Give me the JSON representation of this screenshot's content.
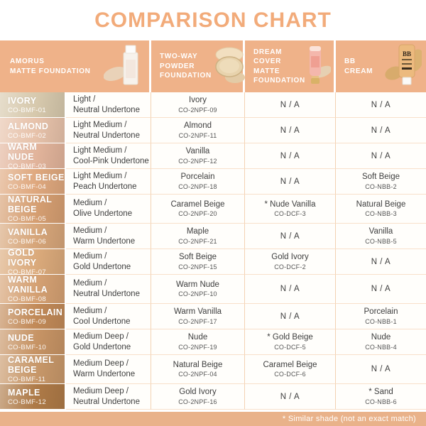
{
  "title": "COMPARISON CHART",
  "na_label": "N / A",
  "footer_note": "* Similar shade (not an exact match)",
  "colors": {
    "accent": "#f2ab7a",
    "header_bg": "#efb289",
    "footer_bg": "#e9b28a",
    "grid_line": "#f3d2b2",
    "cell_bg": "#fffefb"
  },
  "header": {
    "columns": [
      {
        "label": "AMORUS\nMATTE FOUNDATION",
        "icon": "foundation-bottle-icon"
      },
      {
        "label": "TWO-WAY\nPOWDER\nFOUNDATION",
        "icon": "powder-compact-icon"
      },
      {
        "label": "DREAM COVER\nMATTE\nFOUNDATION",
        "icon": "dream-cover-tube-icon"
      },
      {
        "label": "BB CREAM",
        "icon": "bb-cream-tube-icon"
      }
    ]
  },
  "chart_data": {
    "type": "table",
    "title": "COMPARISON CHART",
    "columns": [
      "AMORUS MATTE FOUNDATION",
      "TWO-WAY POWDER FOUNDATION",
      "DREAM COVER MATTE FOUNDATION",
      "BB CREAM"
    ],
    "rows": [
      {
        "shade": "IVORY",
        "shade_code": "CO-BMF-01",
        "swatch_color": "#d7c9ad",
        "undertone": "Light /\nNeutral Undertone",
        "two_way": {
          "name": "Ivory",
          "code": "CO-2NPF-09"
        },
        "dream_cover": null,
        "bb_cream": null
      },
      {
        "shade": "ALMOND",
        "shade_code": "CO-BMF-02",
        "swatch_color": "#e7c2aa",
        "undertone": "Light Medium /\nNeutral Undertone",
        "two_way": {
          "name": "Almond",
          "code": "CO-2NPF-11"
        },
        "dream_cover": null,
        "bb_cream": null
      },
      {
        "shade": "WARM NUDE",
        "shade_code": "CO-BMF-03",
        "swatch_color": "#e2b49b",
        "undertone": "Light Medium /\nCool-Pink Undertone",
        "two_way": {
          "name": "Vanilla",
          "code": "CO-2NPF-12"
        },
        "dream_cover": null,
        "bb_cream": null
      },
      {
        "shade": "SOFT BEIGE",
        "shade_code": "CO-BMF-04",
        "swatch_color": "#dfa87e",
        "undertone": "Light Medium /\nPeach Undertone",
        "two_way": {
          "name": "Porcelain",
          "code": "CO-2NPF-18"
        },
        "dream_cover": null,
        "bb_cream": {
          "name": "Soft Beige",
          "code": "CO-NBB-2"
        }
      },
      {
        "shade": "NATURAL\nBEIGE",
        "shade_code": "CO-BMF-05",
        "swatch_color": "#d69f72",
        "undertone": "Medium /\nOlive Undertone",
        "two_way": {
          "name": "Caramel Beige",
          "code": "CO-2NPF-20"
        },
        "dream_cover": {
          "name": "* Nude Vanilla",
          "code": "CO-DCF-3"
        },
        "bb_cream": {
          "name": "Natural Beige",
          "code": "CO-NBB-3"
        }
      },
      {
        "shade": "VANILLA",
        "shade_code": "CO-BMF-06",
        "swatch_color": "#d7a67a",
        "undertone": "Medium /\nWarm Undertone",
        "two_way": {
          "name": "Maple",
          "code": "CO-2NPF-21"
        },
        "dream_cover": null,
        "bb_cream": {
          "name": "Vanilla",
          "code": "CO-NBB-5"
        }
      },
      {
        "shade": "GOLD IVORY",
        "shade_code": "CO-BMF-07",
        "swatch_color": "#dbaa7b",
        "undertone": "Medium /\nGold Undertone",
        "two_way": {
          "name": "Soft Beige",
          "code": "CO-2NPF-15"
        },
        "dream_cover": {
          "name": "Gold Ivory",
          "code": "CO-DCF-2"
        },
        "bb_cream": null
      },
      {
        "shade": "WARM\nVANILLA",
        "shade_code": "CO-BMF-08",
        "swatch_color": "#d5a173",
        "undertone": "Medium /\nNeutral Undertone",
        "two_way": {
          "name": "Warm Nude",
          "code": "CO-2NPF-10"
        },
        "dream_cover": null,
        "bb_cream": null
      },
      {
        "shade": "PORCELAIN",
        "shade_code": "CO-BMF-09",
        "swatch_color": "#c28a58",
        "undertone": "Medium /\nCool Undertone",
        "two_way": {
          "name": "Warm Vanilla",
          "code": "CO-2NPF-17"
        },
        "dream_cover": null,
        "bb_cream": {
          "name": "Porcelain",
          "code": "CO-NBB-1"
        }
      },
      {
        "shade": "NUDE",
        "shade_code": "CO-BMF-10",
        "swatch_color": "#c79465",
        "undertone": "Medium Deep /\nGold Undertone",
        "two_way": {
          "name": "Nude",
          "code": "CO-2NPF-19"
        },
        "dream_cover": {
          "name": "* Gold Beige",
          "code": "CO-DCF-5"
        },
        "bb_cream": {
          "name": "Nude",
          "code": "CO-NBB-4"
        }
      },
      {
        "shade": "CARAMEL\nBEIGE",
        "shade_code": "CO-BMF-11",
        "swatch_color": "#c8986a",
        "undertone": "Medium Deep /\nWarm Undertone",
        "two_way": {
          "name": "Natural Beige",
          "code": "CO-2NPF-04"
        },
        "dream_cover": {
          "name": "Caramel Beige",
          "code": "CO-DCF-6"
        },
        "bb_cream": null
      },
      {
        "shade": "MAPLE",
        "shade_code": "CO-BMF-12",
        "swatch_color": "#ae7a47",
        "undertone": "Medium Deep /\nNeutral Undertone",
        "two_way": {
          "name": "Gold Ivory",
          "code": "CO-2NPF-16"
        },
        "dream_cover": null,
        "bb_cream": {
          "name": "* Sand",
          "code": "CO-NBB-6"
        }
      }
    ]
  }
}
